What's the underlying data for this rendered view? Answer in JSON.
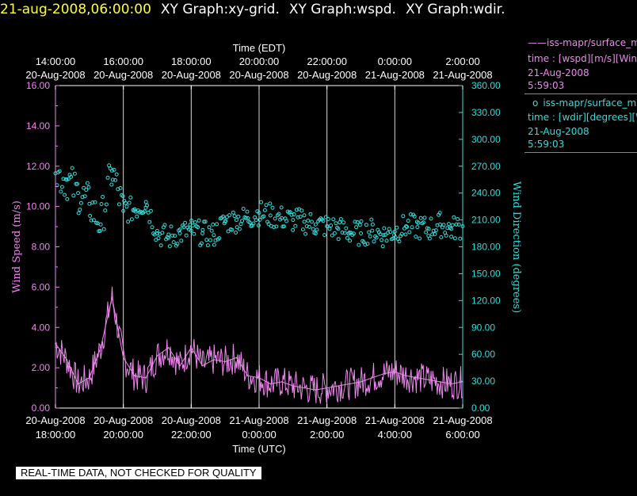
{
  "header": {
    "datetime": "21-aug-2008,06:00:00",
    "titles": [
      "XY Graph:xy-grid.",
      "XY Graph:wspd.",
      "XY Graph:wdir."
    ]
  },
  "legend": {
    "wspd": {
      "symbol": "——",
      "line1": "iss-mapr/surface_m",
      "line2": "time : [wspd][m/s][Wind",
      "line3": "21-Aug-2008",
      "line4": "5:59:03"
    },
    "wdir": {
      "symbol": "o",
      "line1": "iss-mapr/surface_m",
      "line2": "time : [wdir][degrees][W",
      "line3": "21-Aug-2008",
      "line4": "5:59:03"
    }
  },
  "notice": "REAL-TIME DATA, NOT CHECKED FOR QUALITY",
  "colors": {
    "wspd": "#ee88ee",
    "wdir": "#33dddd",
    "grid": "#ffffff",
    "background": "#000000",
    "datetime": "#ffff33"
  },
  "chart_data": {
    "type": "line",
    "top_axis": {
      "label": "Time (EDT)",
      "ticks": [
        {
          "time": "14:00:00",
          "date": "20-Aug-2008"
        },
        {
          "time": "16:00:00",
          "date": "20-Aug-2008"
        },
        {
          "time": "18:00:00",
          "date": "20-Aug-2008"
        },
        {
          "time": "20:00:00",
          "date": "20-Aug-2008"
        },
        {
          "time": "22:00:00",
          "date": "20-Aug-2008"
        },
        {
          "time": "0:00:00",
          "date": "21-Aug-2008"
        },
        {
          "time": "2:00:00",
          "date": "21-Aug-2008"
        }
      ]
    },
    "bottom_axis": {
      "label": "Time (UTC)",
      "range": [
        "2008-08-20T18:00:00Z",
        "2008-08-21T06:00:00Z"
      ],
      "ticks": [
        {
          "date": "20-Aug-2008",
          "time": "18:00:00"
        },
        {
          "date": "20-Aug-2008",
          "time": "20:00:00"
        },
        {
          "date": "20-Aug-2008",
          "time": "22:00:00"
        },
        {
          "date": "21-Aug-2008",
          "time": "0:00:00"
        },
        {
          "date": "21-Aug-2008",
          "time": "2:00:00"
        },
        {
          "date": "21-Aug-2008",
          "time": "4:00:00"
        },
        {
          "date": "21-Aug-2008",
          "time": "6:00:00"
        }
      ]
    },
    "left_axis": {
      "label": "Wind Speed (m/s)",
      "ylim": [
        0,
        16
      ],
      "ticks": [
        "0.00",
        "2.00",
        "4.00",
        "6.00",
        "8.00",
        "10.00",
        "12.00",
        "14.00",
        "16.00"
      ]
    },
    "right_axis": {
      "label": "Wind Direction (degrees)",
      "ylim": [
        0,
        360
      ],
      "ticks": [
        "0.00",
        "30.00",
        "60.00",
        "90.00",
        "120.00",
        "150.00",
        "180.00",
        "210.00",
        "240.00",
        "270.00",
        "300.00",
        "330.00",
        "360.00"
      ]
    },
    "grid": "vertical",
    "series": [
      {
        "name": "iss-mapr/surface_m time : [wspd][m/s][Wind",
        "type": "line",
        "axis": "left",
        "x": [
          "2008-08-20T18:00:00Z",
          "2008-08-20T18:20:00Z",
          "2008-08-20T18:40:00Z",
          "2008-08-20T19:00:00Z",
          "2008-08-20T19:20:00Z",
          "2008-08-20T19:40:00Z",
          "2008-08-20T20:00:00Z",
          "2008-08-20T20:20:00Z",
          "2008-08-20T20:40:00Z",
          "2008-08-20T21:00:00Z",
          "2008-08-20T21:20:00Z",
          "2008-08-20T21:40:00Z",
          "2008-08-20T22:00:00Z",
          "2008-08-20T22:20:00Z",
          "2008-08-20T22:40:00Z",
          "2008-08-20T23:00:00Z",
          "2008-08-20T23:20:00Z",
          "2008-08-20T23:40:00Z",
          "2008-08-21T00:00:00Z",
          "2008-08-21T00:20:00Z",
          "2008-08-21T00:40:00Z",
          "2008-08-21T01:00:00Z",
          "2008-08-21T01:20:00Z",
          "2008-08-21T01:40:00Z",
          "2008-08-21T02:00:00Z",
          "2008-08-21T02:20:00Z",
          "2008-08-21T02:40:00Z",
          "2008-08-21T03:00:00Z",
          "2008-08-21T03:20:00Z",
          "2008-08-21T03:40:00Z",
          "2008-08-21T04:00:00Z",
          "2008-08-21T04:20:00Z",
          "2008-08-21T04:40:00Z",
          "2008-08-21T05:00:00Z",
          "2008-08-21T05:20:00Z",
          "2008-08-21T05:40:00Z",
          "2008-08-21T06:00:00Z"
        ],
        "values": [
          3.2,
          2.4,
          1.2,
          1.5,
          3.0,
          5.5,
          2.5,
          1.6,
          1.5,
          2.6,
          3.0,
          2.1,
          3.0,
          2.1,
          2.4,
          2.3,
          2.5,
          1.6,
          1.5,
          1.2,
          1.3,
          1.1,
          1.0,
          0.9,
          1.0,
          1.1,
          1.2,
          1.3,
          1.5,
          1.7,
          1.8,
          1.6,
          1.5,
          1.4,
          1.3,
          1.2,
          1.3
        ]
      },
      {
        "name": "iss-mapr/surface_m time : [wdir][degrees][W",
        "type": "scatter",
        "axis": "right",
        "x": [
          "2008-08-20T18:00:00Z",
          "2008-08-20T18:20:00Z",
          "2008-08-20T18:40:00Z",
          "2008-08-20T19:00:00Z",
          "2008-08-20T19:20:00Z",
          "2008-08-20T19:40:00Z",
          "2008-08-20T20:00:00Z",
          "2008-08-20T20:20:00Z",
          "2008-08-20T20:40:00Z",
          "2008-08-20T21:00:00Z",
          "2008-08-20T21:20:00Z",
          "2008-08-20T21:40:00Z",
          "2008-08-20T22:00:00Z",
          "2008-08-20T22:20:00Z",
          "2008-08-20T22:40:00Z",
          "2008-08-20T23:00:00Z",
          "2008-08-20T23:20:00Z",
          "2008-08-20T23:40:00Z",
          "2008-08-21T00:00:00Z",
          "2008-08-21T00:20:00Z",
          "2008-08-21T00:40:00Z",
          "2008-08-21T01:00:00Z",
          "2008-08-21T01:20:00Z",
          "2008-08-21T01:40:00Z",
          "2008-08-21T02:00:00Z",
          "2008-08-21T02:20:00Z",
          "2008-08-21T02:40:00Z",
          "2008-08-21T03:00:00Z",
          "2008-08-21T03:20:00Z",
          "2008-08-21T03:40:00Z",
          "2008-08-21T04:00:00Z",
          "2008-08-21T04:20:00Z",
          "2008-08-21T04:40:00Z",
          "2008-08-21T05:00:00Z",
          "2008-08-21T05:20:00Z",
          "2008-08-21T05:40:00Z",
          "2008-08-21T06:00:00Z"
        ],
        "values": [
          262,
          255,
          240,
          228,
          205,
          265,
          220,
          222,
          230,
          195,
          190,
          195,
          198,
          195,
          193,
          208,
          210,
          212,
          218,
          215,
          212,
          210,
          208,
          205,
          203,
          200,
          196,
          195,
          198,
          193,
          197,
          203,
          202,
          200,
          205,
          200,
          203
        ]
      }
    ]
  }
}
